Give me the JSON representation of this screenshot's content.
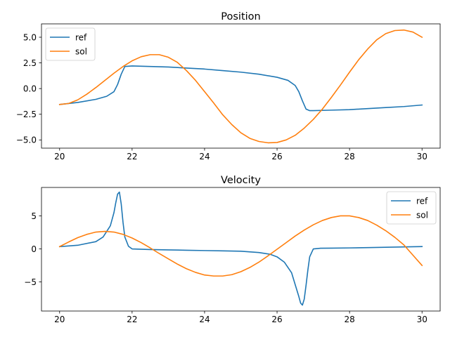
{
  "colors": {
    "ref": "#1f77b4",
    "sol": "#ff7f0e"
  },
  "chart_data": [
    {
      "type": "line",
      "title": "Position",
      "xlabel": "",
      "ylabel": "",
      "xlim": [
        19.5,
        30.5
      ],
      "ylim": [
        -5.8,
        6.3
      ],
      "xticks": [
        20,
        22,
        24,
        26,
        28,
        30
      ],
      "xtick_labels": [
        "20",
        "22",
        "24",
        "26",
        "28",
        "30"
      ],
      "yticks": [
        -5.0,
        -2.5,
        0.0,
        2.5,
        5.0
      ],
      "ytick_labels": [
        "−5.0",
        "−2.5",
        "0.0",
        "2.5",
        "5.0"
      ],
      "legend": "upper left",
      "grid": false,
      "series": [
        {
          "name": "ref",
          "x": [
            20.0,
            20.5,
            21.0,
            21.3,
            21.5,
            21.6,
            21.7,
            21.8,
            22.0,
            22.5,
            23.0,
            23.5,
            24.0,
            24.5,
            25.0,
            25.5,
            26.0,
            26.3,
            26.5,
            26.6,
            26.7,
            26.8,
            26.9,
            27.0,
            27.5,
            28.0,
            28.5,
            29.0,
            29.5,
            30.0
          ],
          "y": [
            -1.55,
            -1.35,
            -1.05,
            -0.75,
            -0.3,
            0.4,
            1.4,
            2.15,
            2.2,
            2.15,
            2.1,
            2.0,
            1.9,
            1.75,
            1.6,
            1.4,
            1.1,
            0.8,
            0.3,
            -0.3,
            -1.2,
            -2.0,
            -2.15,
            -2.15,
            -2.1,
            -2.05,
            -1.95,
            -1.85,
            -1.75,
            -1.6
          ]
        },
        {
          "name": "sol",
          "x": [
            20.0,
            20.25,
            20.5,
            20.75,
            21.0,
            21.25,
            21.5,
            21.75,
            22.0,
            22.25,
            22.5,
            22.75,
            23.0,
            23.25,
            23.5,
            23.75,
            24.0,
            24.25,
            24.5,
            24.75,
            25.0,
            25.25,
            25.5,
            25.75,
            26.0,
            26.25,
            26.5,
            26.75,
            27.0,
            27.25,
            27.5,
            27.75,
            28.0,
            28.25,
            28.5,
            28.75,
            29.0,
            29.25,
            29.5,
            29.75,
            30.0
          ],
          "y": [
            -1.55,
            -1.45,
            -1.1,
            -0.55,
            0.1,
            0.8,
            1.5,
            2.15,
            2.7,
            3.1,
            3.3,
            3.3,
            3.05,
            2.55,
            1.75,
            0.8,
            -0.3,
            -1.4,
            -2.55,
            -3.5,
            -4.3,
            -4.85,
            -5.15,
            -5.28,
            -5.25,
            -5.0,
            -4.55,
            -3.85,
            -3.0,
            -2.0,
            -0.85,
            0.35,
            1.6,
            2.8,
            3.85,
            4.75,
            5.35,
            5.65,
            5.7,
            5.5,
            5.0
          ]
        }
      ]
    },
    {
      "type": "line",
      "title": "Velocity",
      "xlabel": "",
      "ylabel": "",
      "xlim": [
        19.5,
        30.5
      ],
      "ylim": [
        -9.4,
        9.3
      ],
      "xticks": [
        20,
        22,
        24,
        26,
        28,
        30
      ],
      "xtick_labels": [
        "20",
        "22",
        "24",
        "26",
        "28",
        "30"
      ],
      "yticks": [
        -5,
        0,
        5
      ],
      "ytick_labels": [
        "−5",
        "0",
        "5"
      ],
      "legend": "upper right",
      "grid": false,
      "series": [
        {
          "name": "ref",
          "x": [
            20.0,
            20.5,
            21.0,
            21.2,
            21.4,
            21.5,
            21.55,
            21.6,
            21.65,
            21.7,
            21.75,
            21.8,
            21.9,
            22.0,
            22.5,
            23.0,
            23.5,
            24.0,
            24.5,
            25.0,
            25.5,
            25.8,
            26.0,
            26.2,
            26.4,
            26.5,
            26.6,
            26.65,
            26.7,
            26.75,
            26.8,
            26.85,
            26.9,
            27.0,
            27.2,
            27.5,
            28.0,
            28.5,
            29.0,
            29.5,
            30.0
          ],
          "y": [
            0.35,
            0.55,
            1.1,
            1.8,
            3.5,
            5.5,
            7.0,
            8.3,
            8.6,
            6.8,
            4.0,
            1.8,
            0.4,
            0.0,
            -0.1,
            -0.15,
            -0.2,
            -0.25,
            -0.3,
            -0.35,
            -0.55,
            -0.8,
            -1.2,
            -2.0,
            -3.6,
            -5.4,
            -7.2,
            -8.2,
            -8.5,
            -7.6,
            -5.5,
            -3.2,
            -1.2,
            0.0,
            0.1,
            0.12,
            0.15,
            0.2,
            0.25,
            0.3,
            0.35
          ]
        },
        {
          "name": "sol",
          "x": [
            20.0,
            20.25,
            20.5,
            20.75,
            21.0,
            21.25,
            21.5,
            21.75,
            22.0,
            22.25,
            22.5,
            22.75,
            23.0,
            23.25,
            23.5,
            23.75,
            24.0,
            24.25,
            24.5,
            24.75,
            25.0,
            25.25,
            25.5,
            25.75,
            26.0,
            26.25,
            26.5,
            26.75,
            27.0,
            27.25,
            27.5,
            27.75,
            28.0,
            28.25,
            28.5,
            28.75,
            29.0,
            29.25,
            29.5,
            29.75,
            30.0
          ],
          "y": [
            0.35,
            1.05,
            1.7,
            2.2,
            2.55,
            2.65,
            2.55,
            2.2,
            1.65,
            0.95,
            0.15,
            -0.7,
            -1.5,
            -2.3,
            -3.0,
            -3.55,
            -3.95,
            -4.1,
            -4.1,
            -3.9,
            -3.45,
            -2.8,
            -2.0,
            -1.05,
            -0.05,
            0.95,
            1.95,
            2.85,
            3.65,
            4.3,
            4.75,
            5.0,
            5.0,
            4.75,
            4.3,
            3.6,
            2.75,
            1.75,
            0.6,
            -0.95,
            -2.5
          ]
        }
      ]
    }
  ]
}
